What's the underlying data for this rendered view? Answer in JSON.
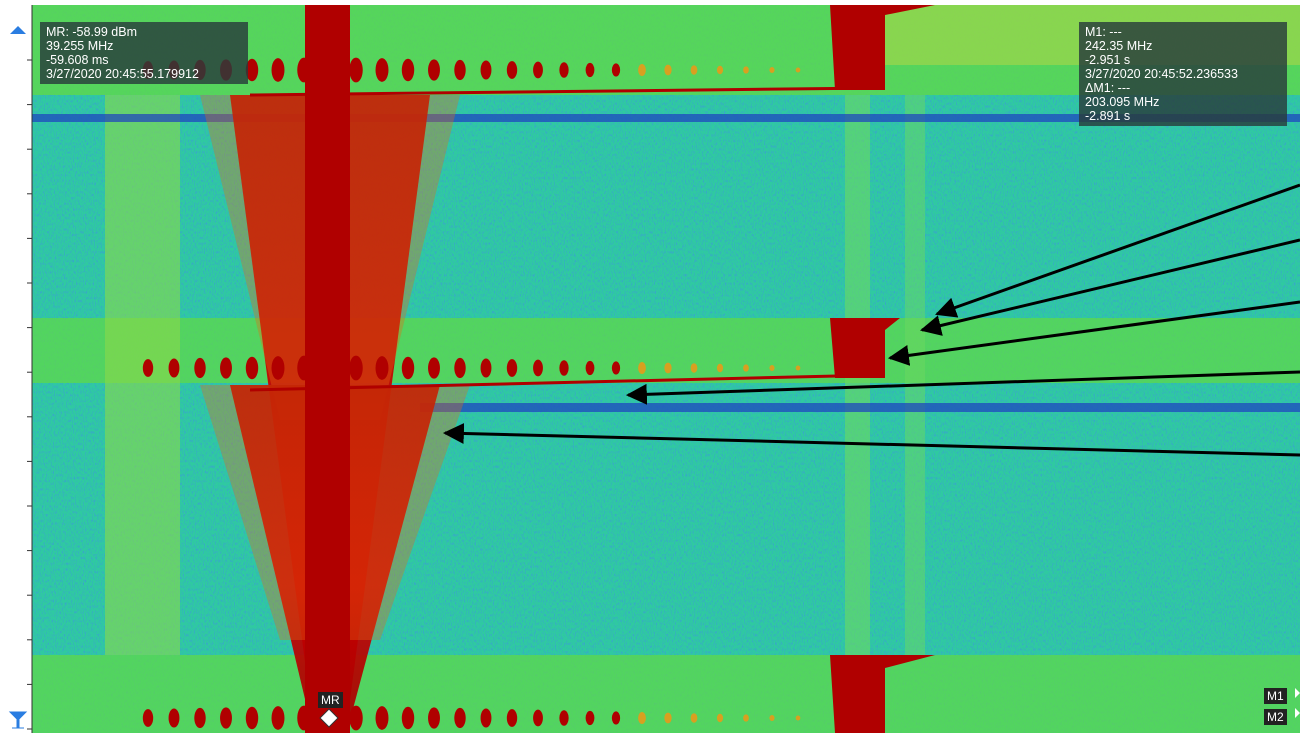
{
  "marker_ref": {
    "lines": [
      "MR: -58.99 dBm",
      "39.255 MHz",
      "-59.608 ms",
      "3/27/2020 20:45:55.179912"
    ]
  },
  "marker_1": {
    "lines": [
      "M1: ---",
      "242.35 MHz",
      "-2.951 s",
      "3/27/2020 20:45:52.236533",
      "ΔM1: ---",
      "203.095 MHz",
      "-2.891 s"
    ]
  },
  "marker_tags": [
    "MR",
    "M1",
    "M2"
  ]
}
